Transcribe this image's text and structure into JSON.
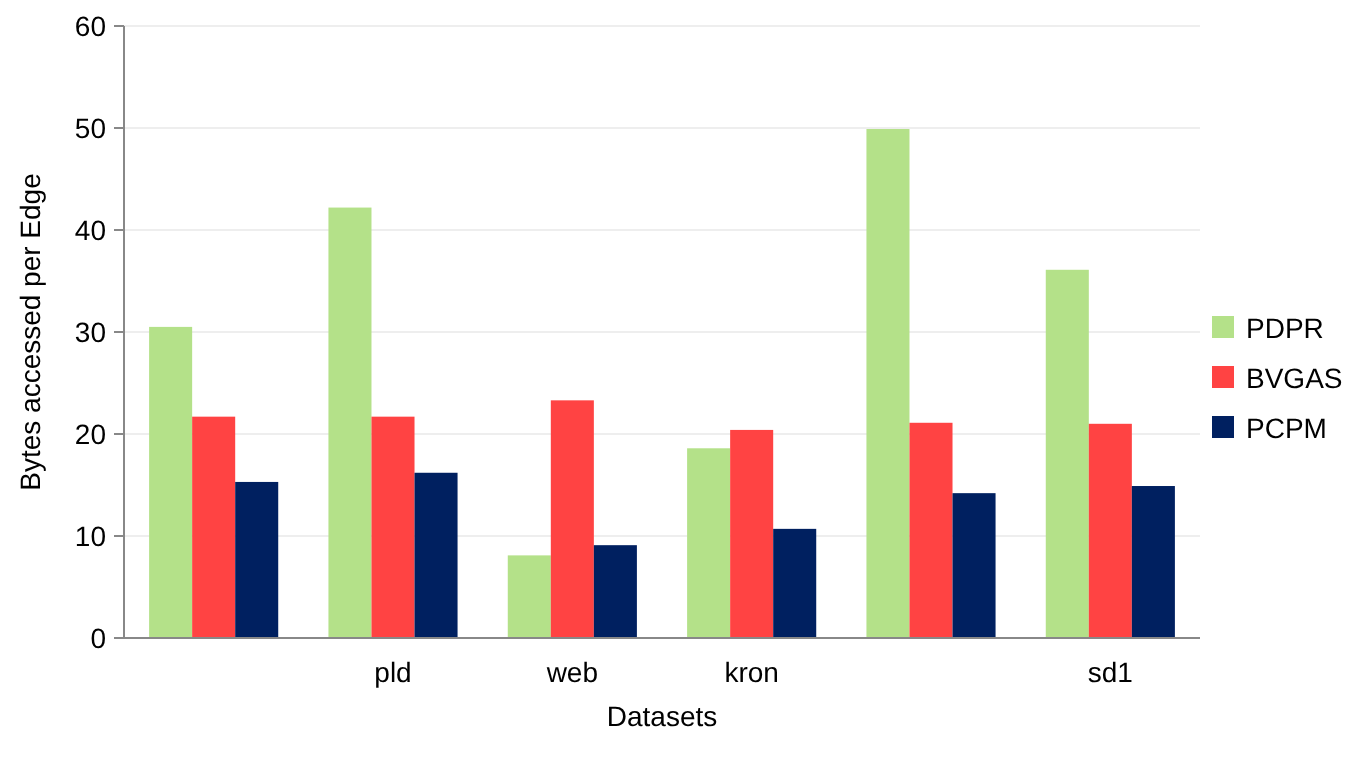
{
  "chart_data": {
    "type": "bar",
    "xlabel": "Datasets",
    "ylabel": "Bytes accessed per Edge",
    "categories": [
      null,
      "pld",
      "web",
      "kron",
      null,
      "sd1"
    ],
    "series": [
      {
        "name": "PDPR",
        "color": "#b4e189",
        "values": [
          30.5,
          42.2,
          8.1,
          18.6,
          49.9,
          36.1
        ]
      },
      {
        "name": "BVGAS",
        "color": "#ff4343",
        "values": [
          21.7,
          21.7,
          23.3,
          20.4,
          21.1,
          21.0
        ]
      },
      {
        "name": "PCPM",
        "color": "#002060",
        "values": [
          15.3,
          16.2,
          9.1,
          10.7,
          14.2,
          14.9
        ]
      }
    ],
    "ylim": [
      0,
      60
    ],
    "yticks": [
      0,
      10,
      20,
      30,
      40,
      50,
      60
    ],
    "grid": "y",
    "legend": "right"
  }
}
